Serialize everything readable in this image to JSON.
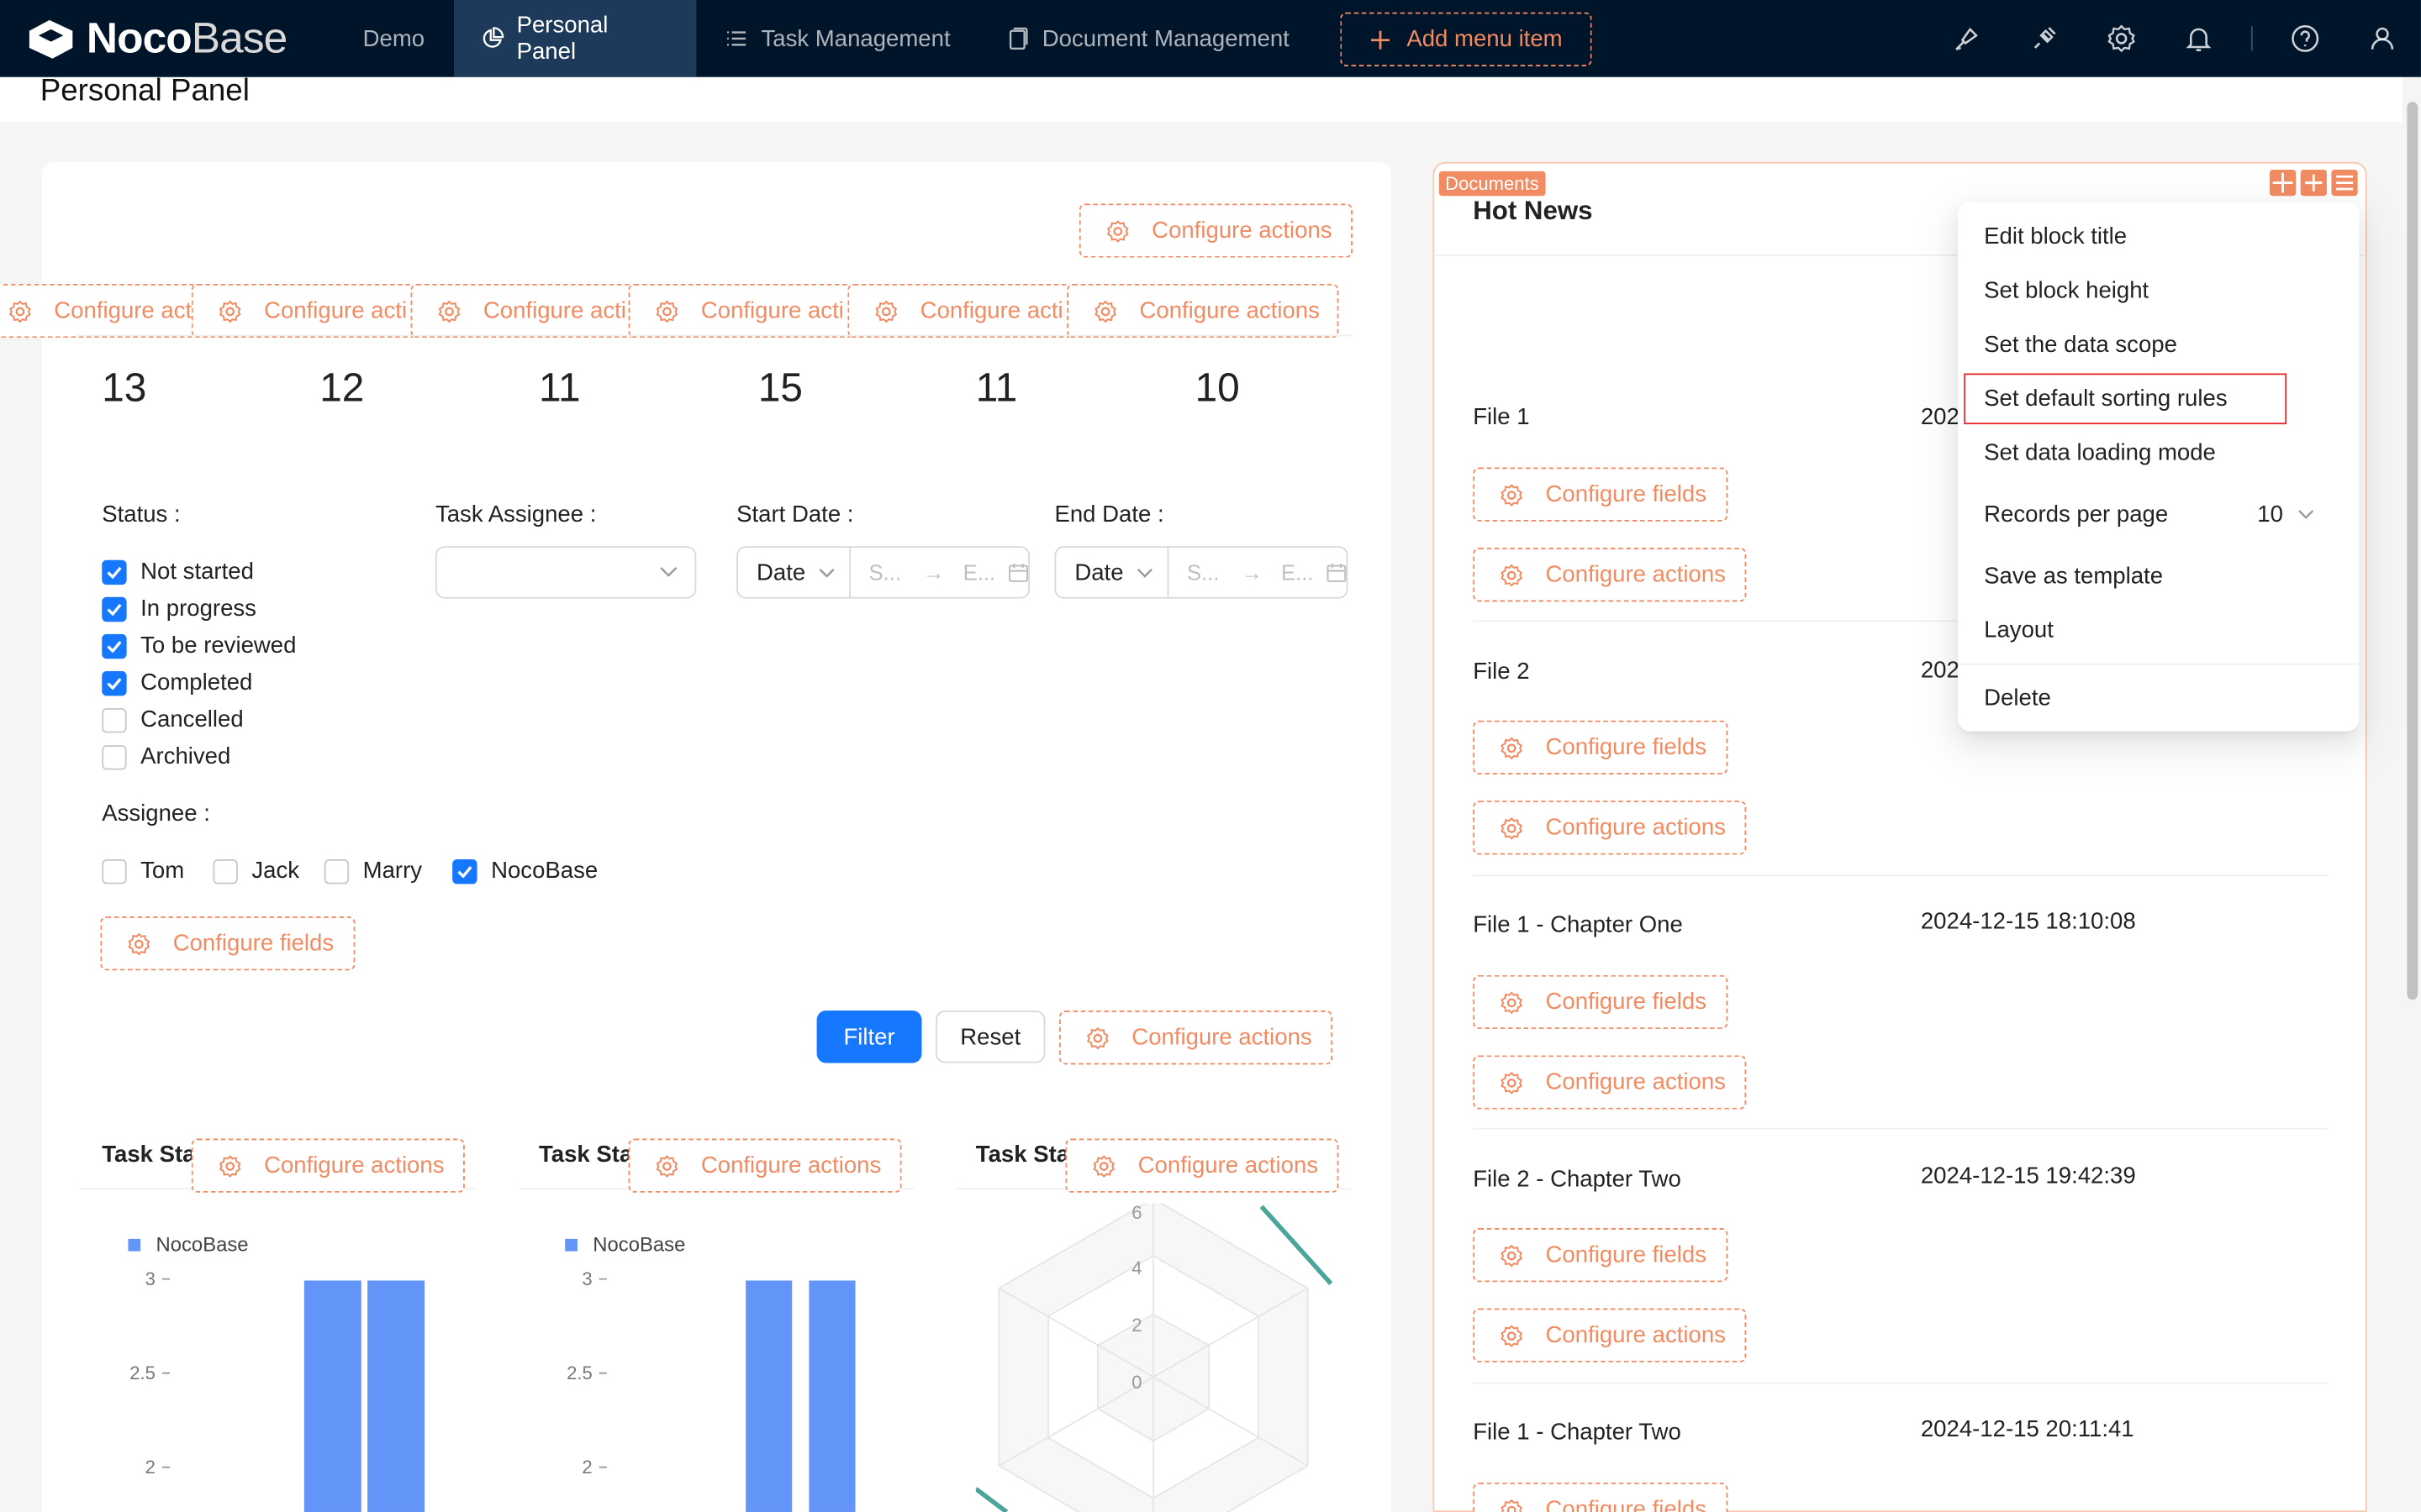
{
  "app": {
    "logo_bold": "Noco",
    "logo_light": "Base",
    "nav": {
      "demo": "Demo",
      "personal_panel": "Personal Panel",
      "task_management": "Task Management",
      "document_management": "Document Management",
      "add_menu_item": "Add menu item"
    },
    "icons": [
      "brush-icon",
      "plugin-icon",
      "gear-icon",
      "bell-icon",
      "help-icon",
      "user-icon"
    ]
  },
  "page": {
    "title": "Personal Panel"
  },
  "left": {
    "configure_actions": "Configure actions",
    "configure_actions_truncated": "Configure acti",
    "configure_fields": "Configure fields",
    "stats": [
      "13",
      "12",
      "11",
      "15",
      "11",
      "10"
    ],
    "filter": {
      "status_label": "Status",
      "status_options": [
        {
          "label": "Not started",
          "checked": true
        },
        {
          "label": "In progress",
          "checked": true
        },
        {
          "label": "To be reviewed",
          "checked": true
        },
        {
          "label": "Completed",
          "checked": true
        },
        {
          "label": "Cancelled",
          "checked": false
        },
        {
          "label": "Archived",
          "checked": false
        }
      ],
      "task_assignee_label": "Task Assignee",
      "start_date_label": "Start Date",
      "end_date_label": "End Date",
      "date_type": "Date",
      "start_placeholder": "S...",
      "end_placeholder": "E...",
      "assignee_label": "Assignee",
      "assignee_options": [
        {
          "label": "Tom",
          "checked": false
        },
        {
          "label": "Jack",
          "checked": false
        },
        {
          "label": "Marry",
          "checked": false
        },
        {
          "label": "NocoBase",
          "checked": true
        }
      ],
      "filter_button": "Filter",
      "reset_button": "Reset"
    },
    "charts": {
      "title": "Task Stat",
      "legend": "NocoBase",
      "series_color": "#6395f9",
      "y_ticks": [
        "3",
        "2.5",
        "2"
      ],
      "radar_ticks": [
        "6",
        "4",
        "2",
        "0"
      ]
    }
  },
  "documents": {
    "tag": "Documents",
    "title": "Hot News",
    "configure_fields": "Configure fields",
    "configure_actions": "Configure actions",
    "items": [
      {
        "name": "File 1",
        "date": "202"
      },
      {
        "name": "File 2",
        "date": "202"
      },
      {
        "name": "File 1 - Chapter One",
        "date": "2024-12-15 18:10:08"
      },
      {
        "name": "File 2 - Chapter Two",
        "date": "2024-12-15 19:42:39"
      },
      {
        "name": "File 1 - Chapter Two",
        "date": "2024-12-15 20:11:41"
      }
    ]
  },
  "menu": {
    "edit_block_title": "Edit block title",
    "set_block_height": "Set block height",
    "set_data_scope": "Set the data scope",
    "set_default_sorting": "Set default sorting rules",
    "set_loading_mode": "Set data loading mode",
    "records_per_page": "Records per page",
    "records_value": "10",
    "save_as_template": "Save as template",
    "layout": "Layout",
    "delete": "Delete"
  },
  "colors": {
    "accent": "#f18b62",
    "primary": "#1677ff",
    "topbar": "#001529",
    "selection_outline": "#e5252a"
  }
}
